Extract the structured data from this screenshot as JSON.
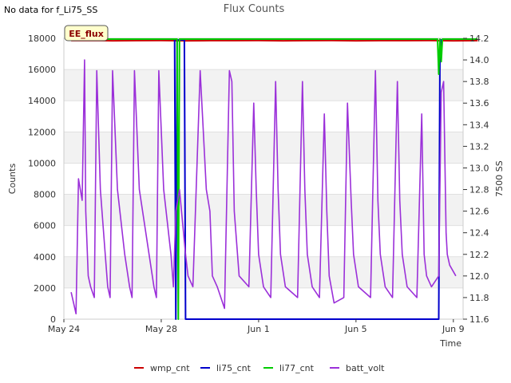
{
  "no_data_text": "No data for f_Li75_SS",
  "badge_text": "EE_flux",
  "chart_data": {
    "type": "line",
    "title": "Flux Counts",
    "xlabel": "Time",
    "ylabel": "Counts",
    "y2label": "7500 SS",
    "xlim": [
      0,
      16.4
    ],
    "ylim": [
      0,
      18000
    ],
    "y2lim": [
      11.6,
      14.2
    ],
    "x_ticks": [
      {
        "v": 0,
        "label": "May 24"
      },
      {
        "v": 4,
        "label": "May 28"
      },
      {
        "v": 8,
        "label": "Jun 1"
      },
      {
        "v": 12,
        "label": "Jun 5"
      },
      {
        "v": 16,
        "label": "Jun 9"
      }
    ],
    "y_ticks": [
      0,
      2000,
      4000,
      6000,
      8000,
      10000,
      12000,
      14000,
      16000,
      18000
    ],
    "y2_ticks": [
      11.6,
      11.8,
      12.0,
      12.2,
      12.4,
      12.6,
      12.8,
      13.0,
      13.2,
      13.4,
      13.6,
      13.8,
      14.0,
      14.2
    ],
    "background_bands": true,
    "legend_position": "bottom",
    "series": [
      {
        "name": "wmp_cnt",
        "color": "#cc0000",
        "axis": "left",
        "x": [
          0.3,
          1.0,
          2.0,
          3.0,
          4.0,
          5.0,
          6.0,
          7.0,
          8.0,
          9.0,
          10.0,
          11.0,
          12.0,
          13.0,
          14.0,
          15.0,
          16.0,
          17.0
        ],
        "y": [
          17850,
          17860,
          17840,
          17850,
          17860,
          17840,
          17850,
          17850,
          17860,
          17840,
          17850,
          17860,
          17840,
          17850,
          17850,
          17860,
          17840,
          17850
        ]
      },
      {
        "name": "li75_cnt",
        "color": "#0000cc",
        "axis": "left",
        "x": [
          4.55,
          4.6,
          4.65,
          4.95,
          5.0,
          15.4,
          15.45,
          15.5,
          15.55
        ],
        "y": [
          17900,
          0,
          17900,
          17900,
          0,
          0,
          17000,
          17900,
          17900
        ]
      },
      {
        "name": "li77_cnt",
        "color": "#00cc00",
        "axis": "left",
        "x": [
          0.3,
          4.65,
          4.7,
          4.75,
          4.8,
          15.35,
          15.4,
          15.45,
          15.5,
          15.55,
          17.0
        ],
        "y": [
          17950,
          17950,
          0,
          17950,
          17950,
          17950,
          15700,
          17950,
          16500,
          17950,
          17950
        ]
      },
      {
        "name": "batt_volt",
        "color": "#9b30d9",
        "axis": "right",
        "x": [
          0.3,
          0.5,
          0.6,
          0.75,
          0.85,
          0.9,
          1.0,
          1.1,
          1.25,
          1.35,
          1.5,
          1.7,
          1.8,
          1.9,
          2.0,
          2.2,
          2.5,
          2.7,
          2.8,
          2.9,
          3.1,
          3.5,
          3.7,
          3.8,
          3.9,
          4.1,
          4.4,
          4.5,
          4.6,
          4.75,
          5.0,
          5.1,
          5.3,
          5.6,
          5.85,
          6.0,
          6.1,
          6.3,
          6.6,
          6.8,
          6.9,
          7.0,
          7.2,
          7.6,
          7.8,
          7.9,
          8.0,
          8.2,
          8.5,
          8.7,
          8.8,
          8.9,
          9.1,
          9.6,
          9.8,
          9.9,
          10.0,
          10.2,
          10.5,
          10.7,
          10.8,
          10.9,
          11.1,
          11.5,
          11.65,
          11.8,
          11.9,
          12.1,
          12.6,
          12.8,
          12.9,
          13.0,
          13.2,
          13.5,
          13.7,
          13.8,
          13.9,
          14.1,
          14.5,
          14.7,
          14.8,
          14.9,
          15.1,
          15.4,
          15.5,
          15.6,
          15.7,
          15.75,
          15.85,
          16.1
        ],
        "y": [
          11.85,
          11.65,
          12.9,
          12.7,
          14.0,
          12.6,
          12.0,
          11.9,
          11.8,
          13.9,
          12.8,
          12.2,
          11.9,
          11.8,
          13.9,
          12.8,
          12.2,
          11.9,
          11.8,
          13.9,
          12.8,
          12.2,
          11.9,
          11.8,
          13.9,
          12.8,
          12.2,
          11.9,
          12.6,
          12.8,
          12.2,
          12.0,
          11.9,
          13.9,
          12.8,
          12.6,
          12.0,
          11.9,
          11.7,
          13.9,
          13.8,
          12.6,
          12.0,
          11.9,
          13.6,
          12.8,
          12.2,
          11.9,
          11.8,
          13.8,
          12.8,
          12.2,
          11.9,
          11.8,
          13.8,
          12.8,
          12.2,
          11.9,
          11.8,
          13.5,
          12.6,
          12.0,
          11.75,
          11.8,
          13.6,
          12.7,
          12.2,
          11.9,
          11.8,
          13.9,
          12.7,
          12.2,
          11.9,
          11.8,
          13.8,
          12.7,
          12.2,
          11.9,
          11.8,
          13.5,
          12.2,
          12.0,
          11.9,
          12.0,
          13.7,
          13.8,
          12.4,
          12.2,
          12.1,
          12.0
        ]
      }
    ]
  }
}
